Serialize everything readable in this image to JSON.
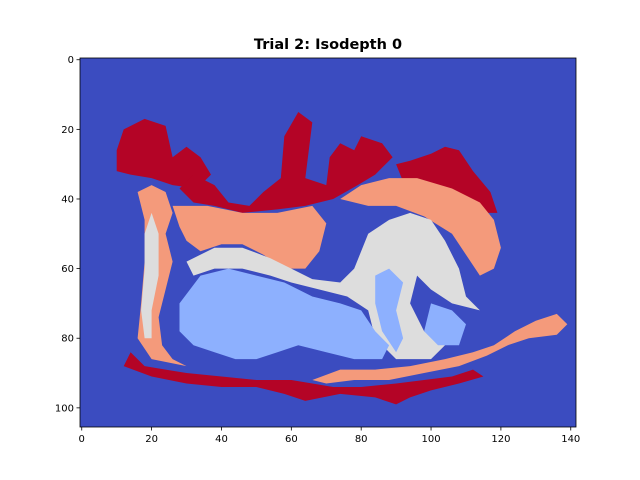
{
  "chart_data": {
    "type": "heatmap",
    "title": "Trial 2: Isodepth 0",
    "xlabel": "",
    "ylabel": "",
    "xlim": [
      -0.5,
      141.5
    ],
    "ylim": [
      105.5,
      -0.5
    ],
    "x_ticks": [
      0,
      20,
      40,
      60,
      80,
      100,
      120,
      140
    ],
    "y_ticks": [
      0,
      20,
      40,
      60,
      80,
      100
    ],
    "grid": false,
    "colormap": "coolwarm",
    "level_colors": {
      "0": "#3b4cc0",
      "1": "#8db0fe",
      "2": "#dddddd",
      "3": "#f49a7b",
      "4": "#b40426"
    },
    "regions": [
      {
        "level": 4,
        "points": [
          [
            10,
            26
          ],
          [
            12,
            20
          ],
          [
            18,
            17
          ],
          [
            24,
            19
          ],
          [
            26,
            28
          ],
          [
            30,
            25
          ],
          [
            34,
            28
          ],
          [
            37,
            33
          ],
          [
            33,
            37
          ],
          [
            26,
            36
          ],
          [
            20,
            34
          ],
          [
            14,
            33
          ],
          [
            10,
            32
          ]
        ]
      },
      {
        "level": 4,
        "points": [
          [
            28,
            37
          ],
          [
            32,
            33
          ],
          [
            38,
            36
          ],
          [
            42,
            41
          ],
          [
            48,
            42
          ],
          [
            52,
            38
          ],
          [
            57,
            34
          ],
          [
            58,
            22
          ],
          [
            62,
            15
          ],
          [
            66,
            18
          ],
          [
            64,
            34
          ],
          [
            70,
            36
          ],
          [
            71,
            28
          ],
          [
            74,
            24
          ],
          [
            78,
            26
          ],
          [
            80,
            22
          ],
          [
            86,
            24
          ],
          [
            89,
            28
          ],
          [
            84,
            33
          ],
          [
            79,
            36
          ],
          [
            72,
            40
          ],
          [
            64,
            42
          ],
          [
            56,
            43
          ],
          [
            46,
            44
          ],
          [
            38,
            42
          ],
          [
            32,
            41
          ]
        ]
      },
      {
        "level": 4,
        "points": [
          [
            90,
            30
          ],
          [
            94,
            29
          ],
          [
            100,
            27
          ],
          [
            104,
            25
          ],
          [
            108,
            26
          ],
          [
            112,
            32
          ],
          [
            117,
            38
          ],
          [
            119,
            44
          ],
          [
            114,
            44
          ],
          [
            110,
            40
          ],
          [
            104,
            37
          ],
          [
            98,
            36
          ],
          [
            92,
            35
          ]
        ]
      },
      {
        "level": 4,
        "points": [
          [
            14,
            84
          ],
          [
            18,
            88
          ],
          [
            24,
            89
          ],
          [
            30,
            90
          ],
          [
            40,
            91
          ],
          [
            50,
            92
          ],
          [
            60,
            92
          ],
          [
            66,
            93
          ],
          [
            72,
            94
          ],
          [
            80,
            94
          ],
          [
            90,
            93
          ],
          [
            98,
            92
          ],
          [
            106,
            91
          ],
          [
            112,
            89
          ],
          [
            115,
            91
          ],
          [
            108,
            93
          ],
          [
            100,
            95
          ],
          [
            94,
            97
          ],
          [
            90,
            99
          ],
          [
            84,
            97
          ],
          [
            74,
            96
          ],
          [
            64,
            98
          ],
          [
            58,
            96
          ],
          [
            50,
            94
          ],
          [
            40,
            94
          ],
          [
            30,
            93
          ],
          [
            20,
            91
          ],
          [
            12,
            88
          ]
        ]
      },
      {
        "level": 3,
        "points": [
          [
            16,
            38
          ],
          [
            20,
            36
          ],
          [
            24,
            38
          ],
          [
            26,
            44
          ],
          [
            24,
            50
          ],
          [
            26,
            58
          ],
          [
            24,
            66
          ],
          [
            22,
            74
          ],
          [
            23,
            82
          ],
          [
            26,
            86
          ],
          [
            30,
            88
          ],
          [
            20,
            86
          ],
          [
            16,
            80
          ],
          [
            17,
            70
          ],
          [
            18,
            58
          ],
          [
            18,
            46
          ]
        ]
      },
      {
        "level": 3,
        "points": [
          [
            26,
            42
          ],
          [
            36,
            42
          ],
          [
            46,
            44
          ],
          [
            56,
            44
          ],
          [
            66,
            42
          ],
          [
            70,
            47
          ],
          [
            68,
            55
          ],
          [
            64,
            60
          ],
          [
            58,
            60
          ],
          [
            52,
            56
          ],
          [
            46,
            53
          ],
          [
            40,
            53
          ],
          [
            34,
            55
          ],
          [
            30,
            52
          ],
          [
            28,
            48
          ]
        ]
      },
      {
        "level": 3,
        "points": [
          [
            74,
            40
          ],
          [
            80,
            36
          ],
          [
            88,
            34
          ],
          [
            96,
            34
          ],
          [
            106,
            37
          ],
          [
            114,
            41
          ],
          [
            118,
            46
          ],
          [
            120,
            54
          ],
          [
            118,
            60
          ],
          [
            114,
            62
          ],
          [
            110,
            56
          ],
          [
            106,
            50
          ],
          [
            98,
            45
          ],
          [
            90,
            42
          ],
          [
            82,
            42
          ]
        ]
      },
      {
        "level": 3,
        "points": [
          [
            66,
            92
          ],
          [
            74,
            89
          ],
          [
            84,
            89
          ],
          [
            94,
            88
          ],
          [
            104,
            86
          ],
          [
            112,
            84
          ],
          [
            118,
            82
          ],
          [
            124,
            78
          ],
          [
            130,
            75
          ],
          [
            136,
            73
          ],
          [
            139,
            76
          ],
          [
            136,
            79
          ],
          [
            128,
            80
          ],
          [
            122,
            82
          ],
          [
            116,
            85
          ],
          [
            108,
            88
          ],
          [
            98,
            90
          ],
          [
            88,
            92
          ],
          [
            78,
            92
          ],
          [
            70,
            93
          ]
        ]
      },
      {
        "level": 2,
        "points": [
          [
            20,
            44
          ],
          [
            22,
            50
          ],
          [
            22,
            62
          ],
          [
            20,
            72
          ],
          [
            20,
            80
          ],
          [
            18,
            80
          ],
          [
            17,
            72
          ],
          [
            18,
            60
          ],
          [
            18,
            50
          ]
        ]
      },
      {
        "level": 2,
        "points": [
          [
            30,
            58
          ],
          [
            38,
            54
          ],
          [
            46,
            54
          ],
          [
            54,
            57
          ],
          [
            60,
            60
          ],
          [
            66,
            63
          ],
          [
            74,
            64
          ],
          [
            78,
            60
          ],
          [
            82,
            50
          ],
          [
            88,
            46
          ],
          [
            94,
            44
          ],
          [
            100,
            46
          ],
          [
            104,
            52
          ],
          [
            108,
            60
          ],
          [
            110,
            68
          ],
          [
            114,
            72
          ],
          [
            106,
            70
          ],
          [
            100,
            66
          ],
          [
            96,
            62
          ],
          [
            94,
            70
          ],
          [
            98,
            78
          ],
          [
            104,
            82
          ],
          [
            100,
            86
          ],
          [
            90,
            86
          ],
          [
            84,
            80
          ],
          [
            82,
            72
          ],
          [
            76,
            68
          ],
          [
            68,
            66
          ],
          [
            60,
            64
          ],
          [
            54,
            62
          ],
          [
            46,
            60
          ],
          [
            38,
            60
          ],
          [
            32,
            62
          ]
        ]
      },
      {
        "level": 1,
        "points": [
          [
            28,
            70
          ],
          [
            34,
            62
          ],
          [
            42,
            60
          ],
          [
            50,
            62
          ],
          [
            58,
            64
          ],
          [
            66,
            68
          ],
          [
            74,
            70
          ],
          [
            80,
            72
          ],
          [
            84,
            78
          ],
          [
            88,
            82
          ],
          [
            86,
            86
          ],
          [
            78,
            86
          ],
          [
            70,
            84
          ],
          [
            62,
            82
          ],
          [
            56,
            84
          ],
          [
            50,
            86
          ],
          [
            44,
            86
          ],
          [
            38,
            84
          ],
          [
            32,
            82
          ],
          [
            28,
            78
          ]
        ]
      },
      {
        "level": 1,
        "points": [
          [
            84,
            62
          ],
          [
            88,
            60
          ],
          [
            92,
            64
          ],
          [
            90,
            72
          ],
          [
            92,
            80
          ],
          [
            90,
            84
          ],
          [
            86,
            78
          ],
          [
            84,
            70
          ]
        ]
      },
      {
        "level": 1,
        "points": [
          [
            100,
            70
          ],
          [
            106,
            72
          ],
          [
            110,
            76
          ],
          [
            108,
            82
          ],
          [
            102,
            82
          ],
          [
            98,
            78
          ]
        ]
      }
    ]
  }
}
